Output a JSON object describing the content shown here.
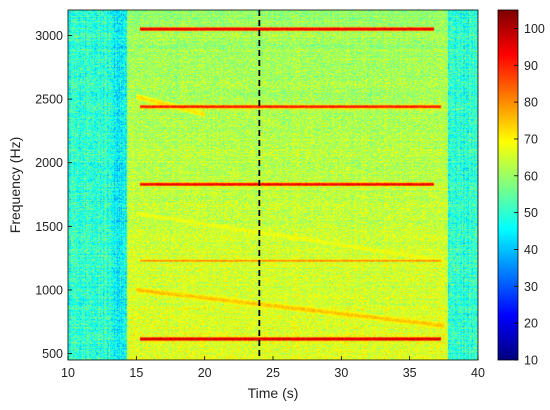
{
  "chart_data": {
    "type": "heatmap",
    "title": "",
    "xlabel": "Time (s)",
    "ylabel": "Frequency (Hz)",
    "xlim": [
      10,
      40
    ],
    "ylim": [
      450,
      3200
    ],
    "xticks": [
      10,
      15,
      20,
      25,
      30,
      35,
      40
    ],
    "yticks": [
      500,
      1000,
      1500,
      2000,
      2500,
      3000
    ],
    "colorbar": {
      "min": 10,
      "max": 105,
      "ticks": [
        10,
        20,
        30,
        40,
        50,
        60,
        70,
        80,
        90,
        100
      ],
      "colormap": "jet"
    },
    "vertical_marker": {
      "x": 24,
      "style": "dashed",
      "color": "#000000"
    },
    "signal_window": {
      "start": 14.3,
      "end": 37.8
    },
    "background_level": 50,
    "active_level": 63,
    "tonal_lines": [
      {
        "f_start": 3050,
        "f_end": 3050,
        "t_start": 15.3,
        "t_end": 36.8,
        "level": 97
      },
      {
        "f_start": 2440,
        "f_end": 2440,
        "t_start": 15.3,
        "t_end": 37.3,
        "level": 92
      },
      {
        "f_start": 1830,
        "f_end": 1830,
        "t_start": 15.3,
        "t_end": 36.8,
        "level": 95
      },
      {
        "f_start": 1230,
        "f_end": 1230,
        "t_start": 15.3,
        "t_end": 37.3,
        "level": 80
      },
      {
        "f_start": 615,
        "f_end": 615,
        "t_start": 15.3,
        "t_end": 37.3,
        "level": 98
      }
    ],
    "sweeps": [
      {
        "f_start": 1000,
        "f_end": 720,
        "t_start": 15.0,
        "t_end": 37.5,
        "level": 75
      },
      {
        "f_start": 1600,
        "f_end": 1230,
        "t_start": 15.0,
        "t_end": 37.5,
        "level": 68
      },
      {
        "f_start": 2520,
        "f_end": 2380,
        "t_start": 15.0,
        "t_end": 20.0,
        "level": 72
      }
    ]
  },
  "colors": {
    "background": "#ffffff",
    "axis": "#000000"
  }
}
